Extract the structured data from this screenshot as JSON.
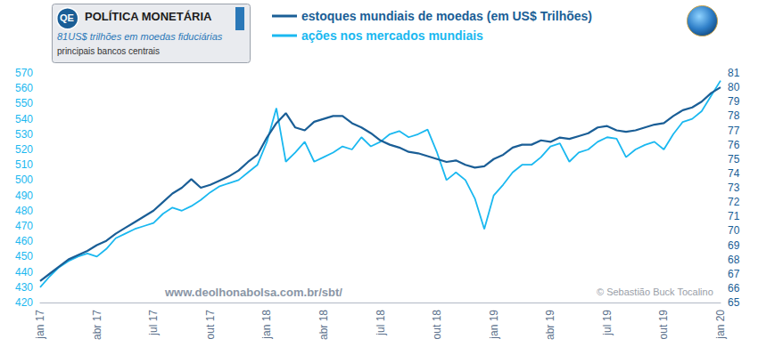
{
  "chart_data": {
    "type": "line",
    "x": [
      "jan 17",
      null,
      null,
      null,
      null,
      null,
      "abr 17",
      null,
      null,
      null,
      null,
      null,
      "jul 17",
      null,
      null,
      null,
      null,
      null,
      "out 17",
      null,
      null,
      null,
      null,
      null,
      "jan 18",
      null,
      null,
      null,
      null,
      null,
      "abr 18",
      null,
      null,
      null,
      null,
      null,
      "jul 18",
      null,
      null,
      null,
      null,
      null,
      "out 18",
      null,
      null,
      null,
      null,
      null,
      "jan 19",
      null,
      null,
      null,
      null,
      null,
      "abr 19",
      null,
      null,
      null,
      null,
      null,
      "jul 19",
      null,
      null,
      null,
      null,
      null,
      "out 19",
      null,
      null,
      null,
      null,
      null,
      "jan 20"
    ],
    "series": [
      {
        "name": "estoques mundiais de moedas (em US$ Trilhões)",
        "color": "#1a5e96",
        "axis": "y2",
        "values": [
          66.5,
          67.0,
          67.5,
          68.0,
          68.3,
          68.6,
          69.0,
          69.3,
          69.8,
          70.2,
          70.6,
          71.0,
          71.4,
          72.0,
          72.6,
          73.0,
          73.6,
          73.0,
          73.2,
          73.5,
          73.8,
          74.2,
          74.8,
          75.3,
          76.5,
          77.5,
          78.2,
          77.2,
          77.0,
          77.6,
          77.8,
          78.0,
          78.0,
          77.5,
          77.2,
          76.8,
          76.3,
          76.0,
          75.8,
          75.5,
          75.4,
          75.2,
          75.0,
          74.8,
          74.9,
          74.6,
          74.4,
          74.5,
          75.0,
          75.3,
          75.8,
          76.0,
          76.0,
          76.3,
          76.2,
          76.5,
          76.4,
          76.6,
          76.8,
          77.2,
          77.3,
          77.0,
          76.9,
          77.0,
          77.2,
          77.4,
          77.5,
          78.0,
          78.4,
          78.6,
          79.0,
          79.6,
          80.0
        ]
      },
      {
        "name": "ações nos mercados mundiais",
        "color": "#1ab8f0",
        "axis": "y",
        "values": [
          430,
          437,
          443,
          447,
          450,
          452,
          450,
          455,
          462,
          465,
          468,
          470,
          472,
          478,
          482,
          480,
          483,
          487,
          492,
          496,
          498,
          500,
          505,
          510,
          525,
          547,
          512,
          518,
          525,
          512,
          515,
          518,
          522,
          520,
          528,
          522,
          525,
          530,
          532,
          528,
          530,
          533,
          518,
          500,
          505,
          500,
          488,
          468,
          490,
          497,
          505,
          510,
          510,
          515,
          522,
          524,
          512,
          518,
          520,
          525,
          528,
          527,
          515,
          520,
          523,
          525,
          520,
          530,
          538,
          540,
          545,
          555,
          565
        ]
      }
    ],
    "ylim": [
      420,
      570
    ],
    "yticks": [
      420,
      430,
      440,
      450,
      460,
      470,
      480,
      490,
      500,
      510,
      520,
      530,
      540,
      550,
      560,
      570
    ],
    "y2lim": [
      65,
      81
    ],
    "y2ticks": [
      65,
      66,
      67,
      68,
      69,
      70,
      71,
      72,
      73,
      74,
      75,
      76,
      77,
      78,
      79,
      80,
      81
    ],
    "grid": false,
    "legend": "top",
    "annotations": {
      "box_logo": "QE",
      "box_title": "POLÍTICA MONETÁRIA",
      "box_subtitle": "81US$ trilhões em moedas fiduciárias",
      "box_note": "principais bancos centrais",
      "website": "www.deolhonabolsa.com.br/sbt/",
      "credit": "© Sebastião Buck Tocalino"
    }
  }
}
